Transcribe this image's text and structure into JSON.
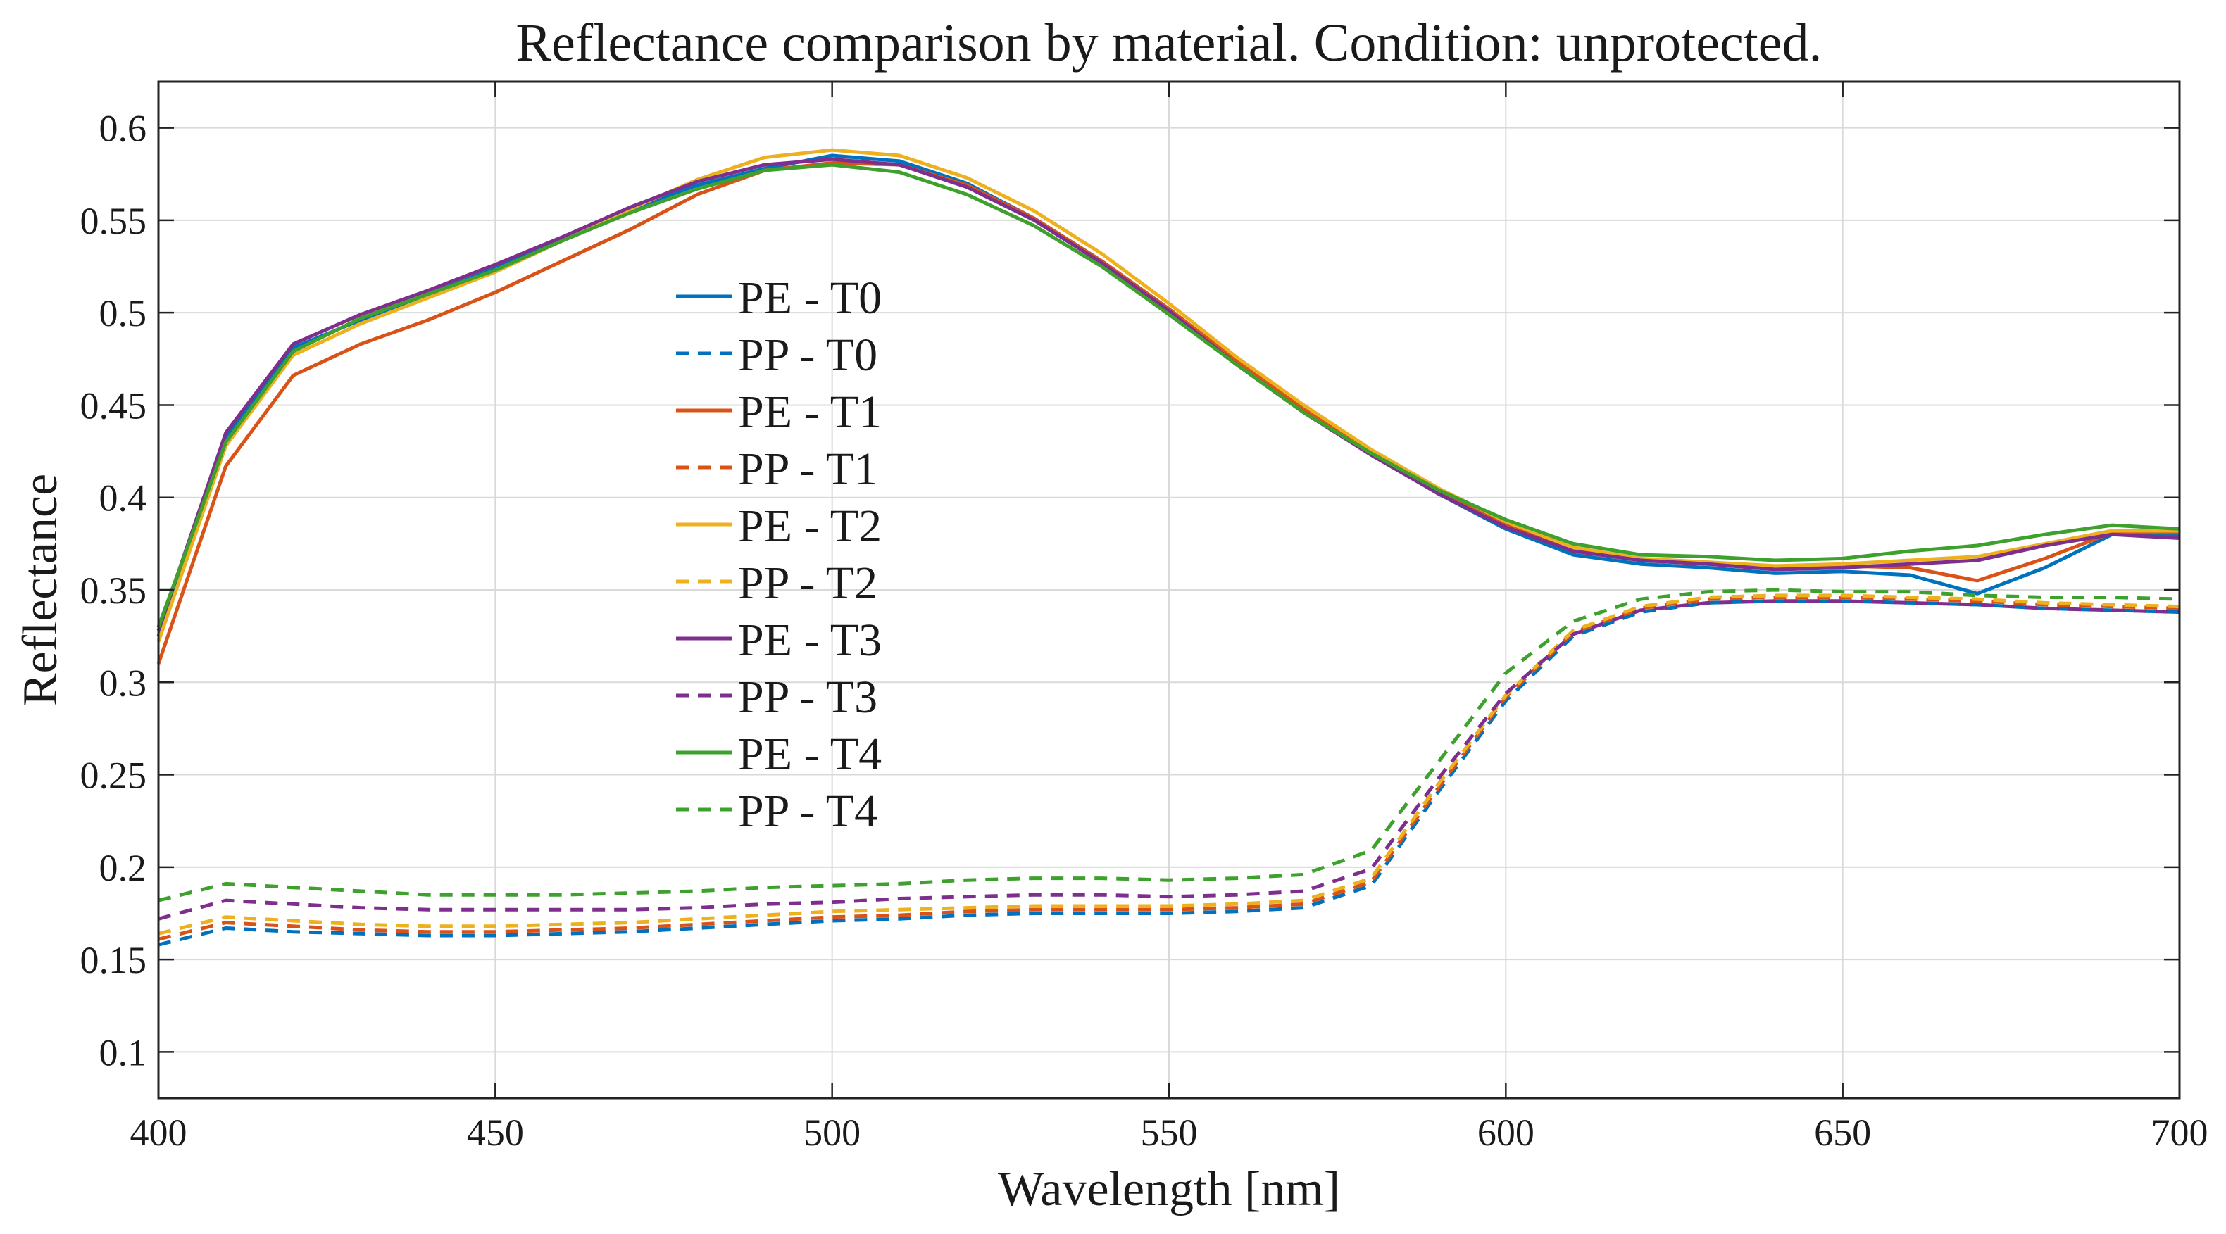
{
  "chart_data": {
    "type": "line",
    "title": "Reflectance comparison by material. Condition: unprotected.",
    "xlabel": "Wavelength [nm]",
    "ylabel": "Reflectance",
    "xlim": [
      400,
      700
    ],
    "ylim": [
      0.075,
      0.625
    ],
    "xticks": [
      400,
      450,
      500,
      550,
      600,
      650,
      700
    ],
    "xtick_labels": [
      "400",
      "450",
      "500",
      "550",
      "600",
      "650",
      "700"
    ],
    "yticks": [
      0.1,
      0.15,
      0.2,
      0.25,
      0.3,
      0.35,
      0.4,
      0.45,
      0.5,
      0.55,
      0.6
    ],
    "ytick_labels": [
      "0.1",
      "0.15",
      "0.2",
      "0.25",
      "0.3",
      "0.35",
      "0.4",
      "0.45",
      "0.5",
      "0.55",
      "0.6"
    ],
    "grid": true,
    "legend_position": "center-left",
    "x": [
      400,
      410,
      420,
      430,
      440,
      450,
      460,
      470,
      480,
      490,
      500,
      510,
      520,
      530,
      540,
      550,
      560,
      570,
      580,
      590,
      600,
      610,
      620,
      630,
      640,
      650,
      660,
      670,
      680,
      690,
      700
    ],
    "series": [
      {
        "name": "PE - T0",
        "color": "#0072BD",
        "style": "solid",
        "values": [
          0.325,
          0.432,
          0.481,
          0.496,
          0.51,
          0.524,
          0.54,
          0.556,
          0.569,
          0.578,
          0.585,
          0.582,
          0.57,
          0.551,
          0.528,
          0.502,
          0.473,
          0.447,
          0.424,
          0.402,
          0.383,
          0.369,
          0.364,
          0.362,
          0.359,
          0.36,
          0.358,
          0.348,
          0.362,
          0.38,
          0.38
        ]
      },
      {
        "name": "PP - T0",
        "color": "#0072BD",
        "style": "dashed",
        "values": [
          0.158,
          0.167,
          0.165,
          0.164,
          0.163,
          0.163,
          0.164,
          0.165,
          0.167,
          0.169,
          0.171,
          0.172,
          0.174,
          0.175,
          0.175,
          0.175,
          0.176,
          0.178,
          0.19,
          0.241,
          0.29,
          0.325,
          0.338,
          0.343,
          0.344,
          0.344,
          0.343,
          0.342,
          0.34,
          0.339,
          0.338
        ]
      },
      {
        "name": "PE - T1",
        "color": "#D95319",
        "style": "solid",
        "values": [
          0.31,
          0.417,
          0.466,
          0.483,
          0.496,
          0.511,
          0.528,
          0.545,
          0.564,
          0.577,
          0.581,
          0.58,
          0.569,
          0.551,
          0.528,
          0.502,
          0.474,
          0.448,
          0.425,
          0.403,
          0.385,
          0.371,
          0.366,
          0.364,
          0.362,
          0.363,
          0.362,
          0.355,
          0.367,
          0.381,
          0.381
        ]
      },
      {
        "name": "PP - T1",
        "color": "#D95319",
        "style": "dashed",
        "values": [
          0.161,
          0.17,
          0.168,
          0.166,
          0.165,
          0.165,
          0.166,
          0.167,
          0.169,
          0.171,
          0.173,
          0.174,
          0.176,
          0.177,
          0.177,
          0.177,
          0.178,
          0.18,
          0.192,
          0.243,
          0.292,
          0.327,
          0.34,
          0.345,
          0.346,
          0.346,
          0.345,
          0.344,
          0.342,
          0.341,
          0.34
        ]
      },
      {
        "name": "PE - T2",
        "color": "#EDB120",
        "style": "solid",
        "values": [
          0.322,
          0.428,
          0.477,
          0.494,
          0.508,
          0.522,
          0.539,
          0.556,
          0.572,
          0.584,
          0.588,
          0.585,
          0.573,
          0.555,
          0.532,
          0.505,
          0.476,
          0.45,
          0.426,
          0.405,
          0.387,
          0.373,
          0.367,
          0.365,
          0.363,
          0.364,
          0.366,
          0.368,
          0.375,
          0.382,
          0.382
        ]
      },
      {
        "name": "PP - T2",
        "color": "#EDB120",
        "style": "dashed",
        "values": [
          0.164,
          0.173,
          0.171,
          0.169,
          0.168,
          0.168,
          0.169,
          0.17,
          0.172,
          0.174,
          0.176,
          0.177,
          0.178,
          0.179,
          0.179,
          0.179,
          0.18,
          0.182,
          0.194,
          0.245,
          0.293,
          0.328,
          0.341,
          0.346,
          0.347,
          0.347,
          0.346,
          0.345,
          0.343,
          0.342,
          0.341
        ]
      },
      {
        "name": "PE - T3",
        "color": "#7E2F8E",
        "style": "solid",
        "values": [
          0.328,
          0.435,
          0.483,
          0.499,
          0.512,
          0.526,
          0.541,
          0.557,
          0.571,
          0.58,
          0.583,
          0.58,
          0.568,
          0.55,
          0.527,
          0.501,
          0.472,
          0.446,
          0.423,
          0.402,
          0.384,
          0.371,
          0.366,
          0.364,
          0.361,
          0.362,
          0.364,
          0.366,
          0.374,
          0.38,
          0.378
        ]
      },
      {
        "name": "PP - T3",
        "color": "#7E2F8E",
        "style": "dashed",
        "values": [
          0.172,
          0.182,
          0.18,
          0.178,
          0.177,
          0.177,
          0.177,
          0.177,
          0.178,
          0.18,
          0.181,
          0.183,
          0.184,
          0.185,
          0.185,
          0.184,
          0.185,
          0.187,
          0.199,
          0.248,
          0.294,
          0.326,
          0.339,
          0.343,
          0.344,
          0.344,
          0.343,
          0.342,
          0.34,
          0.339,
          0.338
        ]
      },
      {
        "name": "PE - T4",
        "color": "#3EA12E",
        "style": "solid",
        "values": [
          0.33,
          0.43,
          0.479,
          0.497,
          0.51,
          0.523,
          0.539,
          0.554,
          0.567,
          0.577,
          0.58,
          0.576,
          0.564,
          0.547,
          0.525,
          0.499,
          0.472,
          0.446,
          0.424,
          0.404,
          0.388,
          0.375,
          0.369,
          0.368,
          0.366,
          0.367,
          0.371,
          0.374,
          0.38,
          0.385,
          0.383
        ]
      },
      {
        "name": "PP - T4",
        "color": "#3EA12E",
        "style": "dashed",
        "values": [
          0.182,
          0.191,
          0.189,
          0.187,
          0.185,
          0.185,
          0.185,
          0.186,
          0.187,
          0.189,
          0.19,
          0.191,
          0.193,
          0.194,
          0.194,
          0.193,
          0.194,
          0.196,
          0.209,
          0.257,
          0.305,
          0.333,
          0.345,
          0.349,
          0.35,
          0.349,
          0.349,
          0.347,
          0.346,
          0.346,
          0.345
        ]
      }
    ]
  }
}
